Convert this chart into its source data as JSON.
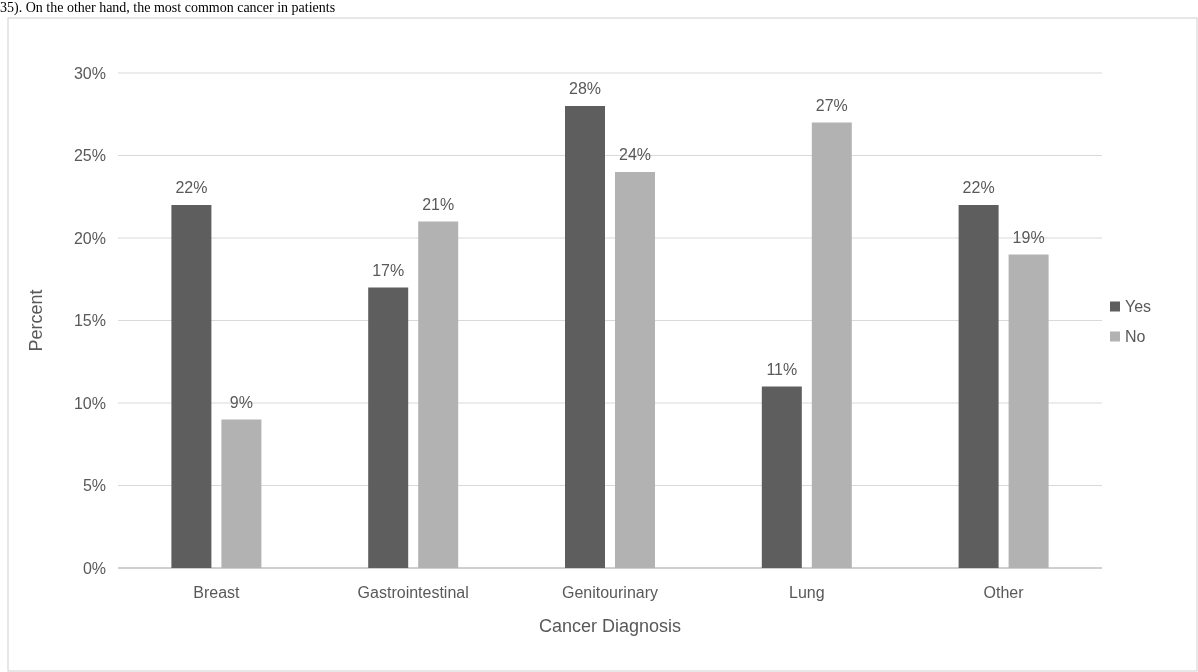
{
  "chart_data": {
    "type": "bar",
    "xlabel": "Cancer Diagnosis",
    "ylabel": "Percent",
    "annotations": [
      "35). On the other hand, the most common cancer in patients"
    ],
    "categories": [
      "Breast",
      "Gastrointestinal",
      "Genitourinary",
      "Lung",
      "Other"
    ],
    "series": [
      {
        "name": "Yes",
        "color": "#5e5e5e",
        "values": [
          22,
          17,
          28,
          11,
          22
        ]
      },
      {
        "name": "No",
        "color": "#b2b2b2",
        "values": [
          9,
          21,
          24,
          27,
          19
        ]
      }
    ],
    "ylim": [
      0,
      30
    ],
    "yticks": [
      {
        "value": 0,
        "label": "0%"
      },
      {
        "value": 5,
        "label": "5%"
      },
      {
        "value": 10,
        "label": "10%"
      },
      {
        "value": 15,
        "label": "15%"
      },
      {
        "value": 20,
        "label": "20%"
      },
      {
        "value": 25,
        "label": "25%"
      },
      {
        "value": 30,
        "label": "30%"
      }
    ],
    "value_labels": [
      [
        "22%",
        "17%",
        "28%",
        "11%",
        "22%"
      ],
      [
        "9%",
        "21%",
        "24%",
        "27%",
        "19%"
      ]
    ],
    "grid": "y",
    "legend": "right"
  }
}
